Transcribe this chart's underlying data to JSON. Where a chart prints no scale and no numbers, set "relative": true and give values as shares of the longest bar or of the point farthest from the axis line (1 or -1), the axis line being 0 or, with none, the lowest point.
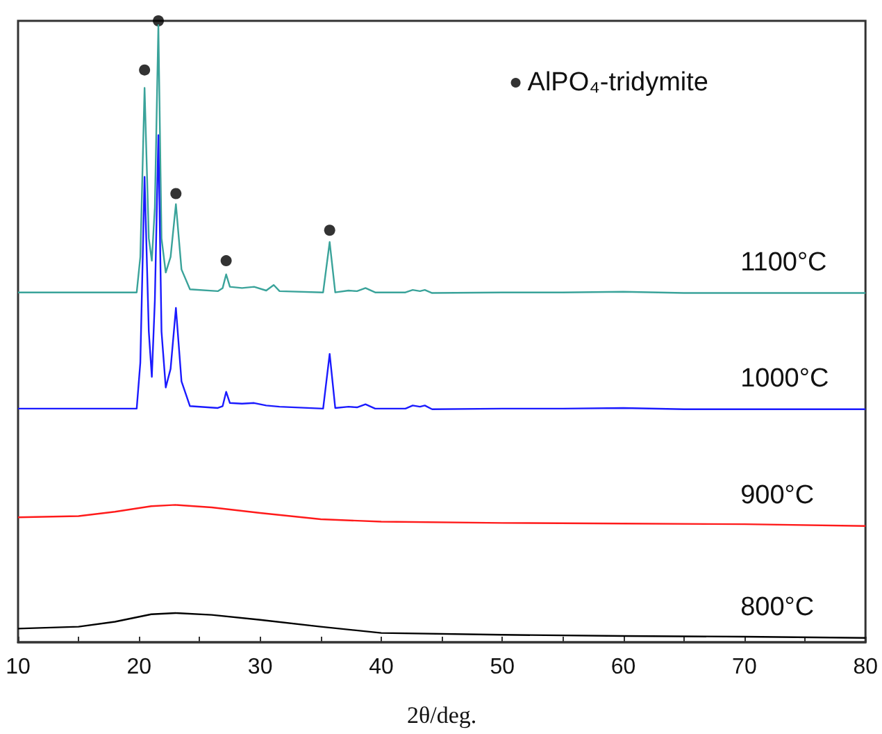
{
  "chart_data": {
    "type": "line",
    "relative": true,
    "xlabel": "2θ/deg.",
    "xlim": [
      10,
      80
    ],
    "xticks": [
      10,
      {
        "value": 15,
        "label": null
      },
      20,
      {
        "value": 25,
        "label": null
      },
      30,
      {
        "value": 35,
        "label": null
      },
      40,
      {
        "value": 45,
        "label": null
      },
      50,
      {
        "value": 55,
        "label": null
      },
      60,
      {
        "value": 65,
        "label": null
      },
      70,
      {
        "value": 75,
        "label": null
      },
      80
    ],
    "grid": false,
    "legend": "top right",
    "marker": "none",
    "line_style": "solid",
    "series": [
      {
        "name": "1100°C",
        "color": "#3aa39a",
        "x": [
          10,
          15,
          19.8,
          20.1,
          20.45,
          20.8,
          21.05,
          21.3,
          21.59,
          21.85,
          22.2,
          22.6,
          23.04,
          23.5,
          24.2,
          26.5,
          26.9,
          27.19,
          27.5,
          28.5,
          29.5,
          30.5,
          31.12,
          31.6,
          35.2,
          35.74,
          36.2,
          37.3,
          38,
          38.7,
          39.5,
          42,
          42.6,
          43.2,
          43.6,
          44.2,
          50,
          55,
          60,
          65,
          70,
          75,
          80
        ],
        "values": [
          0.563,
          0.563,
          0.563,
          0.62,
          0.892,
          0.65,
          0.614,
          0.7,
          0.993,
          0.65,
          0.595,
          0.62,
          0.705,
          0.6,
          0.568,
          0.565,
          0.57,
          0.592,
          0.572,
          0.57,
          0.572,
          0.566,
          0.575,
          0.565,
          0.563,
          0.644,
          0.563,
          0.566,
          0.565,
          0.57,
          0.563,
          0.563,
          0.567,
          0.565,
          0.567,
          0.562,
          0.563,
          0.563,
          0.564,
          0.562,
          0.562,
          0.562,
          0.562
        ]
      },
      {
        "name": "1000°C",
        "color": "#1a1aff",
        "x": [
          10,
          15,
          19.8,
          20.1,
          20.45,
          20.8,
          21.05,
          21.3,
          21.59,
          21.85,
          22.2,
          22.6,
          23.04,
          23.5,
          24.2,
          26.5,
          26.9,
          27.19,
          27.5,
          28.5,
          29.5,
          30.5,
          31.6,
          35.2,
          35.74,
          36.2,
          37.3,
          38,
          38.7,
          39.5,
          42,
          42.6,
          43.2,
          43.6,
          44.2,
          50,
          55,
          60,
          65,
          70,
          75,
          80
        ],
        "values": [
          0.376,
          0.376,
          0.376,
          0.45,
          0.749,
          0.5,
          0.427,
          0.55,
          0.816,
          0.5,
          0.41,
          0.44,
          0.538,
          0.42,
          0.38,
          0.377,
          0.38,
          0.403,
          0.385,
          0.384,
          0.385,
          0.381,
          0.379,
          0.376,
          0.464,
          0.377,
          0.379,
          0.378,
          0.383,
          0.376,
          0.376,
          0.381,
          0.379,
          0.381,
          0.375,
          0.376,
          0.376,
          0.377,
          0.375,
          0.375,
          0.375,
          0.375
        ]
      },
      {
        "name": "900°C",
        "color": "#ff1a1a",
        "x": [
          10,
          15,
          18,
          21,
          23,
          26,
          30,
          35,
          40,
          50,
          60,
          70,
          80
        ],
        "values": [
          0.201,
          0.203,
          0.21,
          0.219,
          0.221,
          0.217,
          0.208,
          0.198,
          0.194,
          0.192,
          0.191,
          0.19,
          0.187
        ]
      },
      {
        "name": "800°C",
        "color": "#000000",
        "x": [
          10,
          15,
          18,
          21,
          23,
          26,
          30,
          35,
          40,
          50,
          60,
          70,
          80
        ],
        "values": [
          0.022,
          0.025,
          0.033,
          0.045,
          0.047,
          0.044,
          0.036,
          0.025,
          0.015,
          0.012,
          0.01,
          0.009,
          0.007
        ]
      },
      {
        "name": "AlPO₄-tridymite",
        "type": "scatter",
        "marker": "circle",
        "color": "#000000",
        "x": [
          20.45,
          21.59,
          23.04,
          27.19,
          35.74
        ],
        "values": [
          0.921,
          1,
          0.722,
          0.614,
          0.663
        ]
      }
    ]
  }
}
